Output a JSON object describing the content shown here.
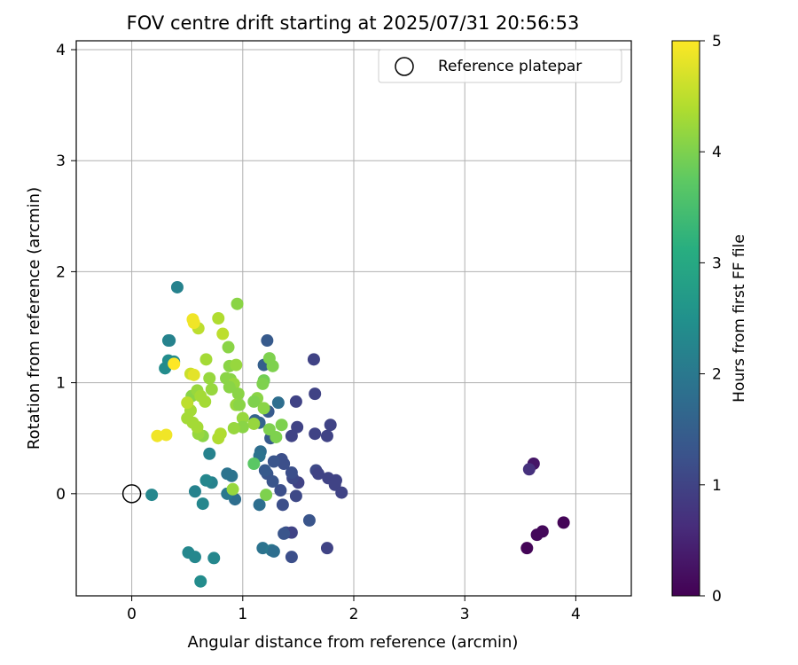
{
  "chart_data": {
    "type": "scatter",
    "title": "FOV centre drift starting at 2025/07/31 20:56:53",
    "xlabel": "Angular distance from reference (arcmin)",
    "ylabel": "Rotation from reference (arcmin)",
    "xlim": [
      -0.5,
      4.5
    ],
    "ylim": [
      -0.92,
      4.08
    ],
    "xticks": [
      0,
      1,
      2,
      3,
      4
    ],
    "yticks": [
      0,
      1,
      2,
      3,
      4
    ],
    "grid": true,
    "legend": {
      "position": "top-right",
      "entries": [
        "Reference platepar"
      ]
    },
    "reference_point": {
      "x": 0,
      "y": 0
    },
    "colorbar": {
      "label": "Hours from first FF file",
      "range": [
        0,
        5
      ],
      "ticks": [
        0,
        1,
        2,
        3,
        4,
        5
      ],
      "colormap": "viridis"
    },
    "points": [
      {
        "x": 3.56,
        "y": -0.49,
        "c": 0.05
      },
      {
        "x": 3.62,
        "y": 0.27,
        "c": 0.3
      },
      {
        "x": 3.65,
        "y": -0.37,
        "c": 0.1
      },
      {
        "x": 3.7,
        "y": -0.34,
        "c": 0.1
      },
      {
        "x": 3.89,
        "y": -0.26,
        "c": 0.05
      },
      {
        "x": 3.58,
        "y": 0.22,
        "c": 0.7
      },
      {
        "x": 1.64,
        "y": 1.21,
        "c": 1.0
      },
      {
        "x": 1.65,
        "y": 0.9,
        "c": 1.0
      },
      {
        "x": 1.48,
        "y": 0.83,
        "c": 1.0
      },
      {
        "x": 1.49,
        "y": 0.6,
        "c": 1.0
      },
      {
        "x": 1.44,
        "y": 0.52,
        "c": 1.0
      },
      {
        "x": 1.65,
        "y": 0.54,
        "c": 1.0
      },
      {
        "x": 1.76,
        "y": 0.52,
        "c": 1.0
      },
      {
        "x": 1.79,
        "y": 0.62,
        "c": 1.0
      },
      {
        "x": 1.66,
        "y": 0.21,
        "c": 1.1
      },
      {
        "x": 1.68,
        "y": 0.18,
        "c": 1.0
      },
      {
        "x": 1.77,
        "y": 0.14,
        "c": 1.0
      },
      {
        "x": 1.84,
        "y": 0.12,
        "c": 1.0
      },
      {
        "x": 1.83,
        "y": 0.08,
        "c": 1.0
      },
      {
        "x": 1.89,
        "y": 0.01,
        "c": 1.0
      },
      {
        "x": 1.5,
        "y": 0.1,
        "c": 1.0
      },
      {
        "x": 1.48,
        "y": -0.02,
        "c": 1.1
      },
      {
        "x": 1.6,
        "y": -0.24,
        "c": 1.3
      },
      {
        "x": 1.39,
        "y": -0.35,
        "c": 1.2
      },
      {
        "x": 1.44,
        "y": -0.35,
        "c": 1.0
      },
      {
        "x": 1.37,
        "y": -0.36,
        "c": 1.3
      },
      {
        "x": 1.44,
        "y": -0.57,
        "c": 1.2
      },
      {
        "x": 1.76,
        "y": -0.49,
        "c": 1.0
      },
      {
        "x": 1.36,
        "y": -0.1,
        "c": 1.2
      },
      {
        "x": 1.34,
        "y": 0.03,
        "c": 1.2
      },
      {
        "x": 1.45,
        "y": 0.14,
        "c": 1.1
      },
      {
        "x": 1.44,
        "y": 0.19,
        "c": 1.2
      },
      {
        "x": 1.37,
        "y": 0.27,
        "c": 1.2
      },
      {
        "x": 1.35,
        "y": 0.31,
        "c": 1.2
      },
      {
        "x": 1.28,
        "y": 0.29,
        "c": 1.3
      },
      {
        "x": 1.27,
        "y": 0.11,
        "c": 1.3
      },
      {
        "x": 1.22,
        "y": 0.18,
        "c": 1.3
      },
      {
        "x": 1.2,
        "y": 0.21,
        "c": 1.4
      },
      {
        "x": 1.25,
        "y": 0.5,
        "c": 1.4
      },
      {
        "x": 1.23,
        "y": 0.74,
        "c": 1.4
      },
      {
        "x": 1.22,
        "y": 1.38,
        "c": 1.4
      },
      {
        "x": 1.19,
        "y": 1.16,
        "c": 1.5
      },
      {
        "x": 1.32,
        "y": 0.82,
        "c": 1.8
      },
      {
        "x": 1.16,
        "y": 0.38,
        "c": 1.8
      },
      {
        "x": 1.15,
        "y": 0.34,
        "c": 1.9
      },
      {
        "x": 1.15,
        "y": -0.1,
        "c": 1.8
      },
      {
        "x": 1.18,
        "y": -0.49,
        "c": 1.9
      },
      {
        "x": 1.26,
        "y": -0.51,
        "c": 2.0
      },
      {
        "x": 1.28,
        "y": -0.52,
        "c": 1.8
      },
      {
        "x": 1.15,
        "y": 0.64,
        "c": 1.6
      },
      {
        "x": 1.11,
        "y": 0.66,
        "c": 1.6
      },
      {
        "x": 0.93,
        "y": -0.05,
        "c": 1.8
      },
      {
        "x": 0.9,
        "y": 0.16,
        "c": 1.9
      },
      {
        "x": 0.86,
        "y": 0.18,
        "c": 1.9
      },
      {
        "x": 0.86,
        "y": 0.0,
        "c": 2.0
      },
      {
        "x": 0.7,
        "y": 0.36,
        "c": 2.2
      },
      {
        "x": 0.72,
        "y": 0.1,
        "c": 2.2
      },
      {
        "x": 0.67,
        "y": 0.12,
        "c": 2.3
      },
      {
        "x": 0.64,
        "y": -0.09,
        "c": 2.3
      },
      {
        "x": 0.57,
        "y": 0.02,
        "c": 2.2
      },
      {
        "x": 0.51,
        "y": -0.53,
        "c": 2.3
      },
      {
        "x": 0.57,
        "y": -0.57,
        "c": 2.3
      },
      {
        "x": 0.74,
        "y": -0.58,
        "c": 2.3
      },
      {
        "x": 0.62,
        "y": -0.79,
        "c": 2.4
      },
      {
        "x": 0.18,
        "y": -0.01,
        "c": 2.3
      },
      {
        "x": 0.41,
        "y": 1.86,
        "c": 2.2
      },
      {
        "x": 0.33,
        "y": 1.38,
        "c": 2.3
      },
      {
        "x": 0.34,
        "y": 1.38,
        "c": 2.2
      },
      {
        "x": 0.33,
        "y": 1.2,
        "c": 2.4
      },
      {
        "x": 0.38,
        "y": 1.19,
        "c": 2.4
      },
      {
        "x": 0.3,
        "y": 1.13,
        "c": 2.4
      },
      {
        "x": 1.1,
        "y": 0.27,
        "c": 3.7
      },
      {
        "x": 0.91,
        "y": 0.04,
        "c": 4.2
      },
      {
        "x": 1.21,
        "y": -0.01,
        "c": 4.0
      },
      {
        "x": 1.24,
        "y": 1.22,
        "c": 4.0
      },
      {
        "x": 1.27,
        "y": 1.15,
        "c": 4.0
      },
      {
        "x": 1.19,
        "y": 1.02,
        "c": 3.9
      },
      {
        "x": 1.18,
        "y": 0.99,
        "c": 4.0
      },
      {
        "x": 1.13,
        "y": 0.86,
        "c": 4.1
      },
      {
        "x": 1.1,
        "y": 0.83,
        "c": 4.0
      },
      {
        "x": 1.19,
        "y": 0.77,
        "c": 4.1
      },
      {
        "x": 1.35,
        "y": 0.62,
        "c": 4.0
      },
      {
        "x": 1.24,
        "y": 0.58,
        "c": 4.0
      },
      {
        "x": 1.3,
        "y": 0.51,
        "c": 4.0
      },
      {
        "x": 1.1,
        "y": 0.63,
        "c": 4.2
      },
      {
        "x": 1.0,
        "y": 0.68,
        "c": 4.2
      },
      {
        "x": 1.0,
        "y": 0.6,
        "c": 4.1
      },
      {
        "x": 0.92,
        "y": 0.59,
        "c": 4.2
      },
      {
        "x": 0.95,
        "y": 1.71,
        "c": 4.1
      },
      {
        "x": 0.87,
        "y": 1.32,
        "c": 4.1
      },
      {
        "x": 0.88,
        "y": 1.15,
        "c": 4.1
      },
      {
        "x": 0.94,
        "y": 1.16,
        "c": 4.2
      },
      {
        "x": 0.85,
        "y": 1.04,
        "c": 4.1
      },
      {
        "x": 0.89,
        "y": 1.03,
        "c": 4.1
      },
      {
        "x": 0.92,
        "y": 0.99,
        "c": 4.2
      },
      {
        "x": 0.88,
        "y": 0.96,
        "c": 4.1
      },
      {
        "x": 0.96,
        "y": 0.9,
        "c": 4.1
      },
      {
        "x": 0.94,
        "y": 0.8,
        "c": 4.2
      },
      {
        "x": 0.97,
        "y": 0.8,
        "c": 4.1
      },
      {
        "x": 0.7,
        "y": 1.04,
        "c": 4.2
      },
      {
        "x": 0.67,
        "y": 1.21,
        "c": 4.3
      },
      {
        "x": 0.66,
        "y": 0.83,
        "c": 4.3
      },
      {
        "x": 0.64,
        "y": 0.52,
        "c": 4.1
      },
      {
        "x": 0.6,
        "y": 0.54,
        "c": 4.2
      },
      {
        "x": 0.54,
        "y": 0.88,
        "c": 4.1
      },
      {
        "x": 0.59,
        "y": 0.93,
        "c": 4.2
      },
      {
        "x": 0.72,
        "y": 0.94,
        "c": 4.2
      },
      {
        "x": 0.62,
        "y": 0.88,
        "c": 4.3
      },
      {
        "x": 0.53,
        "y": 0.75,
        "c": 4.3
      },
      {
        "x": 0.5,
        "y": 0.68,
        "c": 4.3
      },
      {
        "x": 0.55,
        "y": 0.64,
        "c": 4.3
      },
      {
        "x": 0.59,
        "y": 0.6,
        "c": 4.3
      },
      {
        "x": 0.78,
        "y": 0.5,
        "c": 4.4
      },
      {
        "x": 0.8,
        "y": 0.54,
        "c": 4.4
      },
      {
        "x": 0.78,
        "y": 1.58,
        "c": 4.4
      },
      {
        "x": 0.82,
        "y": 1.44,
        "c": 4.5
      },
      {
        "x": 0.6,
        "y": 1.49,
        "c": 4.5
      },
      {
        "x": 0.5,
        "y": 0.82,
        "c": 4.5
      },
      {
        "x": 0.53,
        "y": 1.08,
        "c": 4.6
      },
      {
        "x": 0.56,
        "y": 1.07,
        "c": 4.8
      },
      {
        "x": 0.55,
        "y": 1.57,
        "c": 4.9
      },
      {
        "x": 0.56,
        "y": 1.54,
        "c": 4.9
      },
      {
        "x": 0.38,
        "y": 1.17,
        "c": 5.0
      },
      {
        "x": 0.23,
        "y": 0.52,
        "c": 4.9
      },
      {
        "x": 0.31,
        "y": 0.53,
        "c": 4.9
      }
    ]
  }
}
